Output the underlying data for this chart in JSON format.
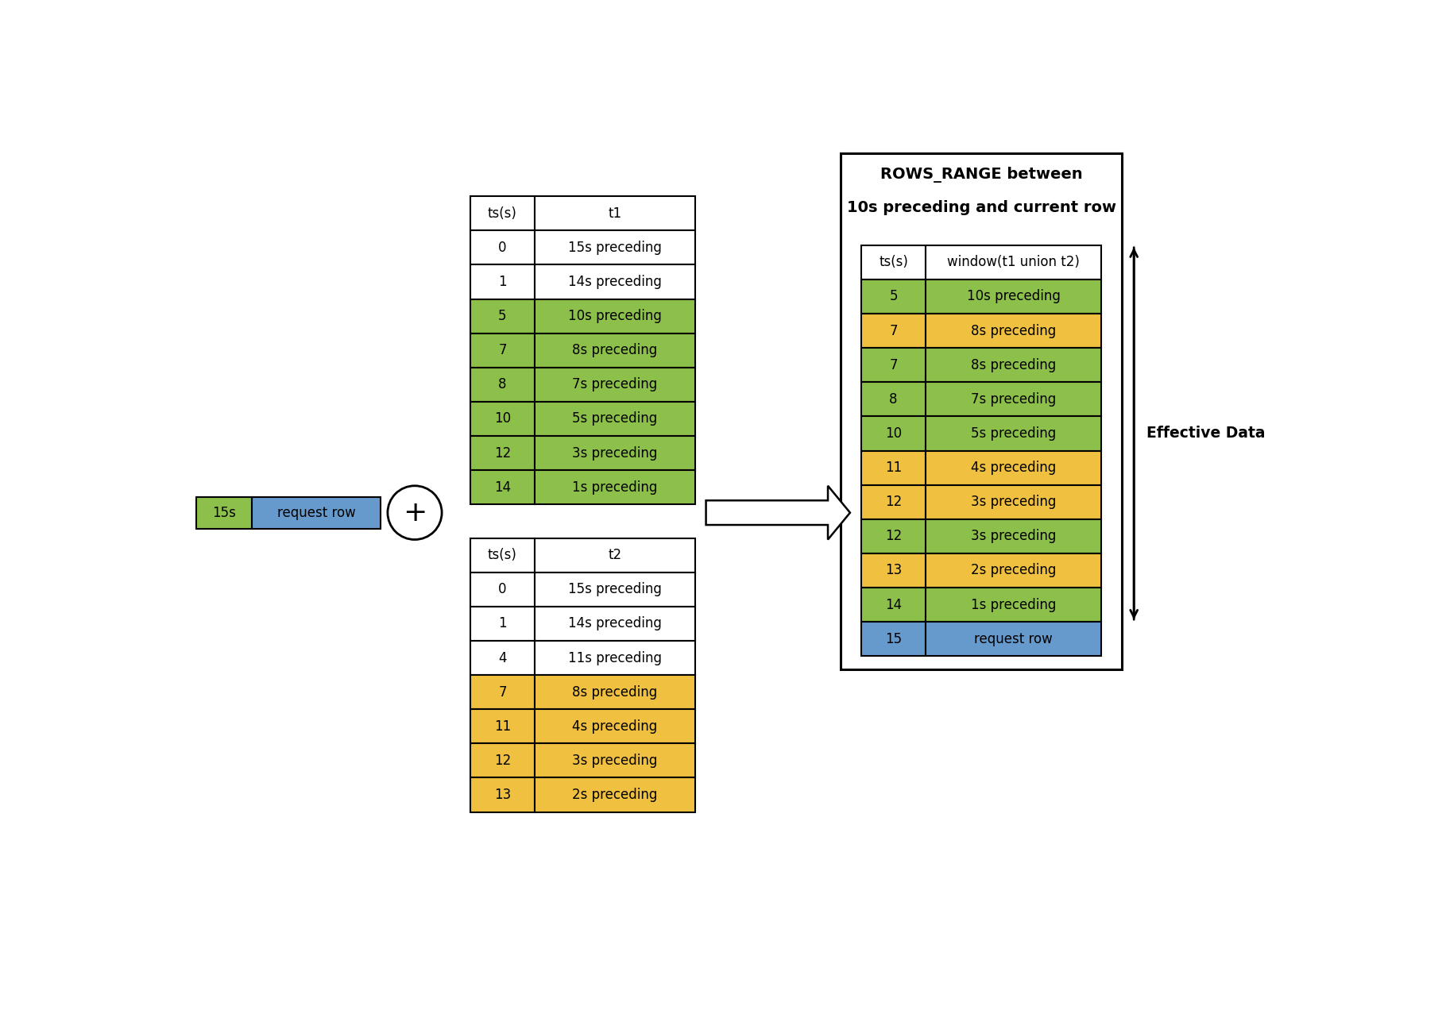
{
  "green_color": "#8DC04B",
  "yellow_color": "#F0C040",
  "blue_color": "#6699CC",
  "white_color": "#FFFFFF",
  "t1_header": [
    "ts(s)",
    "t1"
  ],
  "t1_rows": [
    {
      "ts": "0",
      "val": "15s preceding",
      "color": "#FFFFFF"
    },
    {
      "ts": "1",
      "val": "14s preceding",
      "color": "#FFFFFF"
    },
    {
      "ts": "5",
      "val": "10s preceding",
      "color": "#8DC04B"
    },
    {
      "ts": "7",
      "val": "8s preceding",
      "color": "#8DC04B"
    },
    {
      "ts": "8",
      "val": "7s preceding",
      "color": "#8DC04B"
    },
    {
      "ts": "10",
      "val": "5s preceding",
      "color": "#8DC04B"
    },
    {
      "ts": "12",
      "val": "3s preceding",
      "color": "#8DC04B"
    },
    {
      "ts": "14",
      "val": "1s preceding",
      "color": "#8DC04B"
    }
  ],
  "t2_header": [
    "ts(s)",
    "t2"
  ],
  "t2_rows": [
    {
      "ts": "0",
      "val": "15s preceding",
      "color": "#FFFFFF"
    },
    {
      "ts": "1",
      "val": "14s preceding",
      "color": "#FFFFFF"
    },
    {
      "ts": "4",
      "val": "11s preceding",
      "color": "#FFFFFF"
    },
    {
      "ts": "7",
      "val": "8s preceding",
      "color": "#F0C040"
    },
    {
      "ts": "11",
      "val": "4s preceding",
      "color": "#F0C040"
    },
    {
      "ts": "12",
      "val": "3s preceding",
      "color": "#F0C040"
    },
    {
      "ts": "13",
      "val": "2s preceding",
      "color": "#F0C040"
    }
  ],
  "result_title_line1": "ROWS_RANGE between",
  "result_title_line2": "10s preceding and current row",
  "result_header": [
    "ts(s)",
    "window(t1 union t2)"
  ],
  "result_rows": [
    {
      "ts": "5",
      "val": "10s preceding",
      "color": "#8DC04B"
    },
    {
      "ts": "7",
      "val": "8s preceding",
      "color": "#F0C040"
    },
    {
      "ts": "7",
      "val": "8s preceding",
      "color": "#8DC04B"
    },
    {
      "ts": "8",
      "val": "7s preceding",
      "color": "#8DC04B"
    },
    {
      "ts": "10",
      "val": "5s preceding",
      "color": "#8DC04B"
    },
    {
      "ts": "11",
      "val": "4s preceding",
      "color": "#F0C040"
    },
    {
      "ts": "12",
      "val": "3s preceding",
      "color": "#F0C040"
    },
    {
      "ts": "12",
      "val": "3s preceding",
      "color": "#8DC04B"
    },
    {
      "ts": "13",
      "val": "2s preceding",
      "color": "#F0C040"
    },
    {
      "ts": "14",
      "val": "1s preceding",
      "color": "#8DC04B"
    },
    {
      "ts": "15",
      "val": "request row",
      "color": "#6699CC"
    }
  ],
  "effective_data_label": "Effective Data",
  "request_row_ts": "15s",
  "request_row_label": "request row",
  "fig_width": 18.2,
  "fig_height": 12.77
}
